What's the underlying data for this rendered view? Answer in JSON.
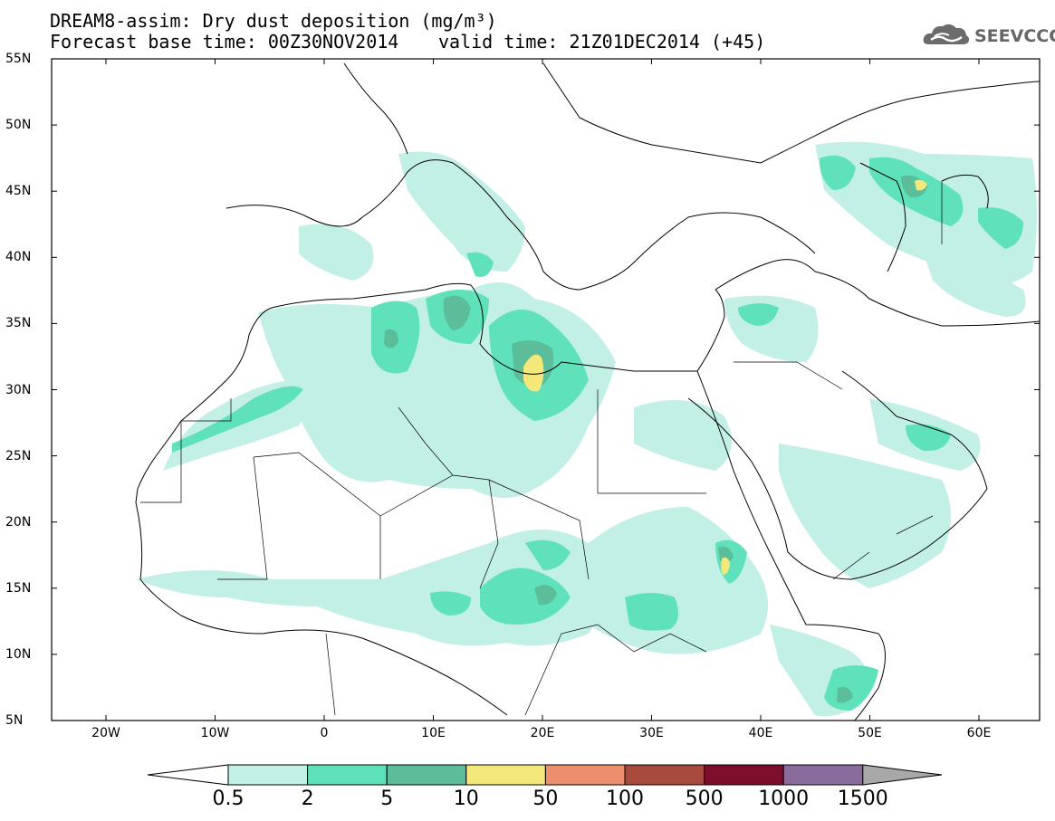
{
  "title": {
    "line1": "DREAM8-assim: Dry dust deposition (mg/m³)",
    "line2a": "Forecast base time: 00Z30NOV2014",
    "line2b": "valid time: 21Z01DEC2014 (+45)"
  },
  "logo": {
    "text": "SEEVCCC",
    "icon": "cloud-icon"
  },
  "axes": {
    "y_labels": [
      "55N",
      "50N",
      "45N",
      "40N",
      "35N",
      "30N",
      "25N",
      "20N",
      "15N",
      "10N",
      "5N"
    ],
    "x_labels": [
      "20W",
      "10W",
      "0",
      "10E",
      "20E",
      "30E",
      "40E",
      "50E",
      "60E"
    ]
  },
  "colorbar": {
    "labels": [
      "0.5",
      "2",
      "5",
      "10",
      "50",
      "100",
      "500",
      "1000",
      "1500"
    ],
    "colors": [
      "#c2efe6",
      "#5fe2bb",
      "#5bbd9a",
      "#f4e87a",
      "#eb8f6d",
      "#a84a3e",
      "#7c0e2c",
      "#8a6b9d",
      "#a8a8a8"
    ]
  }
}
